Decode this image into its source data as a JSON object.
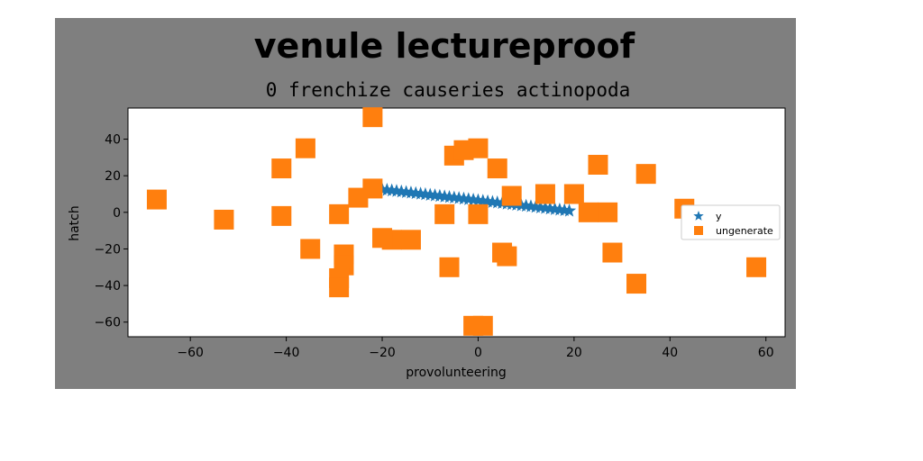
{
  "chart_data": {
    "type": "scatter",
    "title": "venule lectureproof",
    "subtitle": "0 frenchize causeries actinopoda",
    "xlabel": "provolunteering",
    "ylabel": "hatch",
    "xlim": [
      -73,
      64
    ],
    "ylim": [
      -68,
      57
    ],
    "xticks": [
      -60,
      -40,
      -20,
      0,
      20,
      40,
      60
    ],
    "yticks": [
      -60,
      -40,
      -20,
      0,
      20,
      40
    ],
    "xtick_labels": [
      "−60",
      "−40",
      "−20",
      "0",
      "20",
      "40",
      "60"
    ],
    "ytick_labels": [
      "−60",
      "−40",
      "−20",
      "0",
      "20",
      "40"
    ],
    "grid": false,
    "legend_position": "center-right",
    "series": [
      {
        "name": "y",
        "marker": "star",
        "color": "#1f77b4",
        "x": [
          -20,
          -19,
          -18,
          -17,
          -16,
          -15,
          -14,
          -13,
          -12,
          -11,
          -10,
          -9,
          -8,
          -7,
          -6,
          -5,
          -4,
          -3,
          -2,
          -1,
          0,
          1,
          2,
          3,
          4,
          5,
          6,
          7,
          8,
          9,
          10,
          11,
          12,
          13,
          14,
          15,
          16,
          17,
          18,
          19
        ],
        "y": [
          12.5,
          12.2,
          11.9,
          11.6,
          11.3,
          11.0,
          10.7,
          10.4,
          10.1,
          9.8,
          9.5,
          9.2,
          8.9,
          8.6,
          8.3,
          8.0,
          7.7,
          7.4,
          7.1,
          6.8,
          6.5,
          6.2,
          5.9,
          5.6,
          5.3,
          5.0,
          4.7,
          4.4,
          4.1,
          3.8,
          3.5,
          3.2,
          2.9,
          2.6,
          2.3,
          2.0,
          1.7,
          1.4,
          1.1,
          0.8
        ]
      },
      {
        "name": "ungenerate",
        "marker": "square",
        "color": "#ff7f0e",
        "x": [
          -22,
          -67,
          -53,
          -41,
          -41,
          -36,
          -35,
          -29,
          -28,
          -28,
          -29,
          -29,
          -25,
          -22,
          -18,
          -14,
          -7,
          -6,
          -5,
          -3,
          0,
          0,
          4,
          5,
          6,
          7,
          14,
          20,
          23,
          25,
          27,
          28,
          33,
          35,
          43,
          58,
          -1,
          1,
          -20
        ],
        "y": [
          52,
          7,
          -4,
          -2,
          24,
          35,
          -20,
          -1,
          -23,
          -29,
          -36,
          -41,
          8,
          13,
          -15,
          -15,
          -1,
          -30,
          31,
          34,
          35,
          -1,
          24,
          -22,
          -24,
          9,
          10,
          10,
          0,
          26,
          0,
          -22,
          -39,
          21,
          2,
          -30,
          -62,
          -62,
          -14
        ]
      }
    ]
  }
}
